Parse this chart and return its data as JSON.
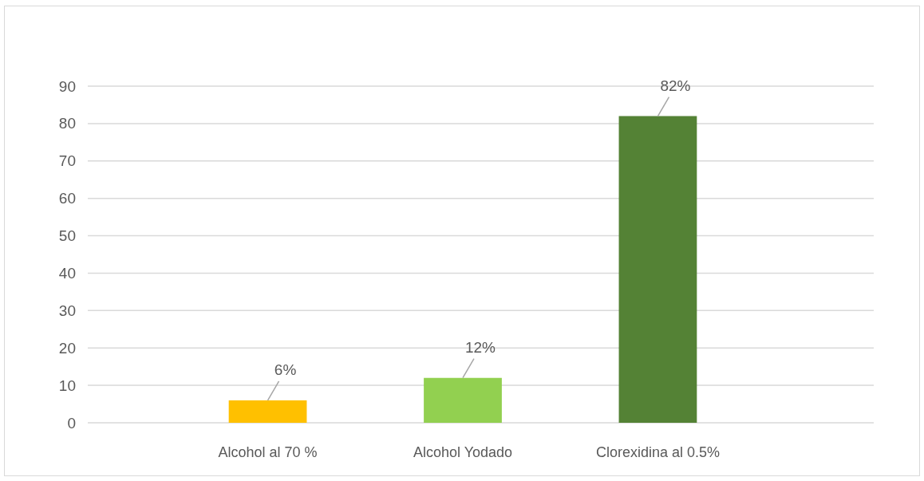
{
  "chart_data": {
    "type": "bar",
    "categories": [
      "Alcohol al 70 %",
      "Alcohol Yodado",
      "Clorexidina al 0.5%"
    ],
    "values": [
      6,
      12,
      82
    ],
    "colors": [
      "#ffc000",
      "#92d050",
      "#548235"
    ],
    "value_labels": [
      "6%",
      "12%",
      "82%"
    ],
    "ylim": [
      0,
      90
    ],
    "yticks": [
      0,
      10,
      20,
      30,
      40,
      50,
      60,
      70,
      80,
      90
    ],
    "grid": "y"
  }
}
